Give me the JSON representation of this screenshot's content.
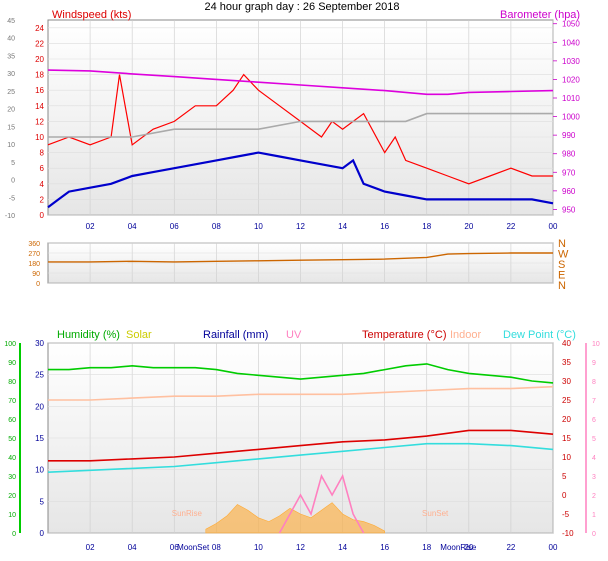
{
  "chart_data": [
    {
      "type": "line",
      "panel": "wind_baro",
      "title": "24 hour graph day : 26 September 2018",
      "x_ticks": [
        "02",
        "04",
        "06",
        "08",
        "10",
        "12",
        "14",
        "16",
        "18",
        "20",
        "22",
        "00"
      ],
      "left_axis": {
        "label": "Windspeed (kts)",
        "ticks": [
          0,
          2,
          4,
          6,
          8,
          10,
          12,
          14,
          16,
          18,
          20,
          22,
          24
        ],
        "range": [
          0,
          25
        ]
      },
      "outer_left_axis": {
        "ticks": [
          -10,
          -5,
          0,
          5,
          10,
          15,
          20,
          25,
          30,
          35,
          40,
          45
        ],
        "range": [
          -10,
          45
        ]
      },
      "right_axis": {
        "label": "Barometer (hpa)",
        "ticks": [
          950,
          960,
          970,
          980,
          990,
          1000,
          1010,
          1020,
          1030,
          1040,
          1050
        ],
        "range": [
          947,
          1052
        ]
      },
      "series": [
        {
          "name": "Windspeed (kts)",
          "color": "#ff0000",
          "x": [
            0,
            1,
            2,
            3,
            3.4,
            4,
            5,
            6,
            7,
            8,
            8.8,
            9.3,
            10,
            11,
            12,
            13,
            13.5,
            14,
            15,
            16,
            16.5,
            17,
            18,
            19,
            20,
            21,
            22,
            23,
            24
          ],
          "values": [
            9,
            10,
            9,
            10,
            18,
            9,
            11,
            12,
            14,
            14,
            16,
            18,
            16,
            14,
            12,
            10,
            12,
            11,
            13,
            8,
            10,
            7,
            6,
            5,
            4,
            5,
            6,
            5,
            5
          ]
        },
        {
          "name": "Gust",
          "color": "#aaaaaa",
          "x": [
            0,
            2,
            4,
            6,
            8,
            10,
            12,
            14,
            16,
            17,
            18,
            19,
            20,
            21,
            22,
            23,
            24
          ],
          "values": [
            10,
            10,
            10,
            11,
            11,
            11,
            12,
            12,
            12,
            12,
            13,
            13,
            13,
            13,
            13,
            13,
            13
          ]
        },
        {
          "name": "Average speed",
          "color": "#0000cc",
          "x": [
            0,
            0.5,
            1,
            2,
            3,
            4,
            5,
            6,
            7,
            8,
            9,
            10,
            11,
            12,
            13,
            14,
            14.5,
            15,
            16,
            17,
            18,
            19,
            20,
            21,
            22,
            23,
            24
          ],
          "values": [
            1,
            2,
            3,
            3.5,
            4,
            5,
            5.5,
            6,
            6.5,
            7,
            7.5,
            8,
            7.5,
            7,
            6.5,
            6,
            7,
            4,
            3,
            2.5,
            2,
            2,
            2,
            2,
            2,
            2,
            1.5
          ]
        },
        {
          "name": "Barometer (hpa)",
          "color": "#dd00dd",
          "x": [
            0,
            2,
            4,
            6,
            8,
            10,
            12,
            14,
            16,
            18,
            19,
            20,
            22,
            24
          ],
          "values": [
            1025,
            1024.6,
            1023,
            1021.5,
            1020,
            1018.5,
            1017,
            1015.5,
            1014,
            1012,
            1012,
            1013,
            1013.5,
            1014
          ]
        }
      ]
    },
    {
      "type": "line",
      "panel": "wind_direction",
      "left_axis": {
        "ticks": [
          0,
          90,
          180,
          270,
          360
        ],
        "range": [
          0,
          360
        ]
      },
      "right_axis": {
        "ticks": [
          "N",
          "W",
          "S",
          "E",
          "N"
        ]
      },
      "series": [
        {
          "name": "Wind direction",
          "color": "#cc6600",
          "x": [
            0,
            2,
            4,
            6,
            8,
            10,
            12,
            14,
            16,
            18,
            19,
            20,
            22,
            24
          ],
          "values": [
            190,
            190,
            195,
            190,
            195,
            200,
            205,
            210,
            215,
            230,
            260,
            265,
            270,
            270
          ]
        }
      ]
    },
    {
      "type": "line",
      "panel": "temp_hum",
      "legend": [
        "Humidity (%)",
        "Solar",
        "Rainfall (mm)",
        "UV",
        "Temperature (°C)",
        "Indoor",
        "Dew Point (°C)"
      ],
      "x_ticks": [
        "02",
        "04",
        "06",
        "08",
        "10",
        "12",
        "14",
        "16",
        "18",
        "20",
        "22",
        "00"
      ],
      "moon_labels": [
        "MoonSet",
        "MoonRise"
      ],
      "sun_labels": [
        "SunRise",
        "SunSet"
      ],
      "outer_left_axis": {
        "ticks": [
          0,
          10,
          20,
          30,
          40,
          50,
          60,
          70,
          80,
          90,
          100
        ]
      },
      "inner_left_axis": {
        "ticks": [
          0,
          5,
          10,
          15,
          20,
          25,
          30
        ]
      },
      "right_axis": {
        "ticks": [
          -10,
          -5,
          0,
          5,
          10,
          15,
          20,
          25,
          30,
          35,
          40
        ]
      },
      "outer_right_axis": {
        "ticks": [
          0,
          1,
          2,
          3,
          4,
          5,
          6,
          7,
          8,
          9,
          10
        ]
      },
      "series": [
        {
          "name": "Humidity (%)",
          "color": "#00cc00",
          "x": [
            0,
            1,
            2,
            3,
            4,
            5,
            6,
            7,
            8,
            9,
            10,
            11,
            12,
            13,
            14,
            15,
            16,
            17,
            18,
            19,
            20,
            21,
            22,
            23,
            24
          ],
          "values": [
            86,
            86,
            87,
            87,
            88,
            87,
            87,
            87,
            86,
            84,
            83,
            82,
            81,
            82,
            83,
            84,
            86,
            88,
            89,
            86,
            84,
            83,
            82,
            80,
            79
          ]
        },
        {
          "name": "Temperature (°C)",
          "color": "#dd0000",
          "x": [
            0,
            2,
            4,
            6,
            8,
            10,
            12,
            14,
            16,
            18,
            20,
            22,
            24
          ],
          "values": [
            9,
            9,
            9.5,
            10,
            11,
            12,
            13,
            14,
            14.5,
            15.5,
            17,
            17,
            16
          ]
        },
        {
          "name": "Dew Point (°C)",
          "color": "#33dddd",
          "x": [
            0,
            2,
            4,
            6,
            8,
            10,
            12,
            14,
            16,
            18,
            20,
            22,
            24
          ],
          "values": [
            6,
            6.5,
            7,
            7.5,
            8.5,
            9.5,
            10.5,
            11.5,
            12.5,
            13.5,
            13.5,
            13,
            12
          ]
        },
        {
          "name": "Indoor",
          "color": "#ffc0a0",
          "x": [
            0,
            2,
            4,
            6,
            8,
            10,
            12,
            14,
            16,
            18,
            20,
            22,
            24
          ],
          "values": [
            25,
            25,
            25.5,
            26,
            26,
            26.5,
            26.5,
            26.5,
            27,
            27.5,
            28,
            28,
            28.5
          ]
        },
        {
          "name": "Solar",
          "color": "#ffaa33",
          "x": [
            7.5,
            8,
            8.5,
            9,
            9.5,
            10,
            10.5,
            11,
            11.5,
            12,
            12.5,
            13,
            13.5,
            14,
            14.5,
            15,
            15.5,
            16
          ],
          "values": [
            2,
            5,
            9,
            15,
            12,
            8,
            6,
            9,
            13,
            10,
            8,
            12,
            16,
            10,
            7,
            6,
            4,
            1
          ]
        },
        {
          "name": "UV",
          "color": "#ff80c0",
          "x": [
            11,
            11.5,
            12,
            12.5,
            13,
            13.5,
            14,
            14.5,
            15
          ],
          "values": [
            0,
            1,
            2,
            1,
            3,
            2,
            3,
            1,
            0
          ]
        }
      ]
    }
  ]
}
